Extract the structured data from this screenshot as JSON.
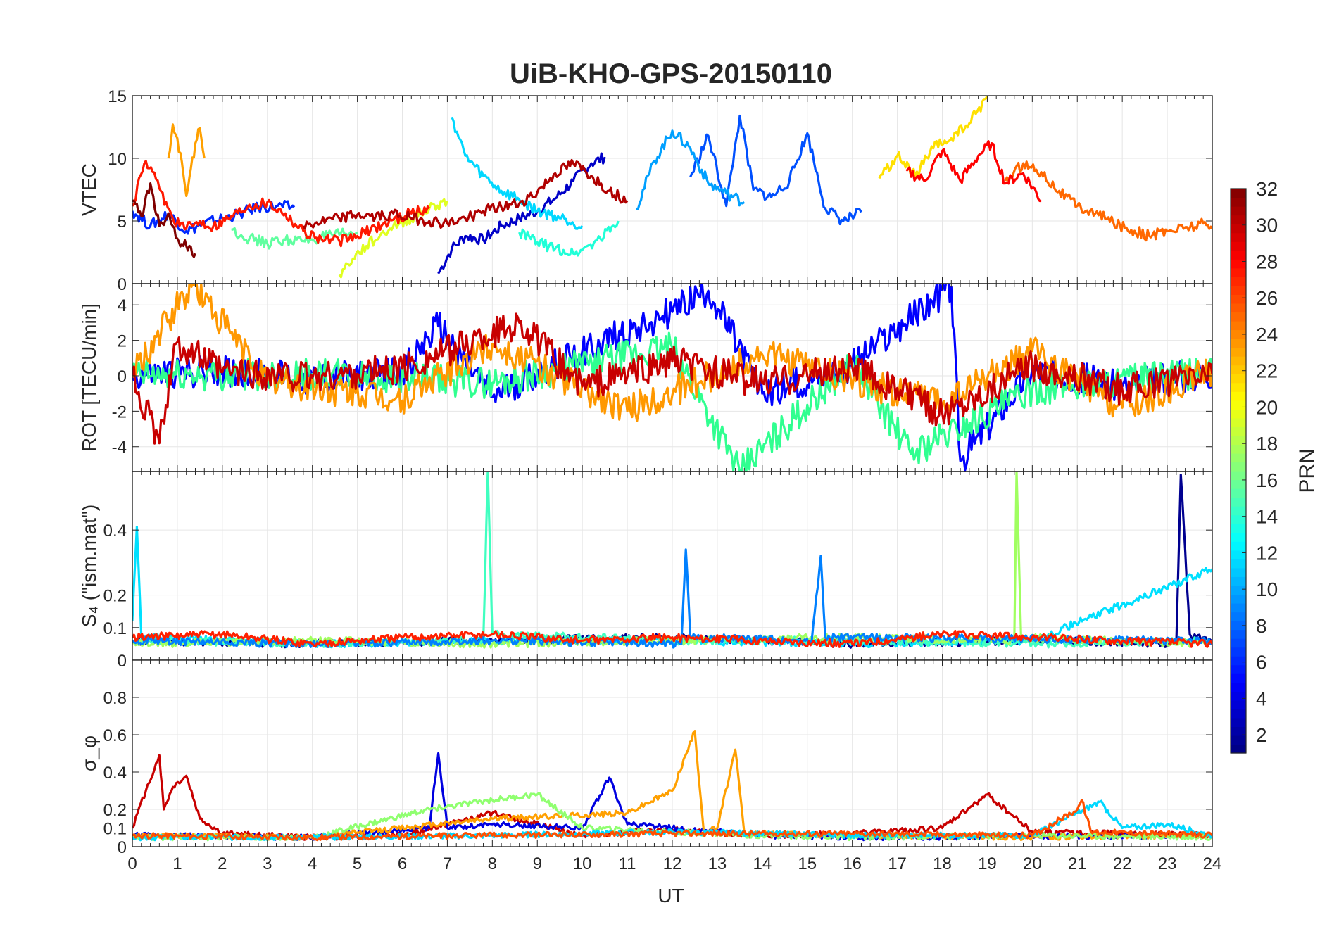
{
  "figure": {
    "title": "UiB-KHO-GPS-20150110",
    "xlabel": "UT"
  },
  "chart_data": [
    {
      "type": "line",
      "panel": "vtec",
      "ylabel": "VTEC",
      "xlim": [
        0,
        24
      ],
      "ylim": [
        0,
        15
      ],
      "xticks": [
        0,
        1,
        2,
        3,
        4,
        5,
        6,
        7,
        8,
        9,
        10,
        11,
        12,
        13,
        14,
        15,
        16,
        17,
        18,
        19,
        20,
        21,
        22,
        23,
        24
      ],
      "yticks": [
        0,
        5,
        10,
        15
      ],
      "grid": true,
      "series": [
        {
          "prn": 2,
          "color": "#0000c8",
          "x": [
            6.8,
            7.1,
            7.4,
            7.8,
            8.2,
            8.6,
            9.0,
            9.4,
            9.8,
            10.2,
            10.5
          ],
          "y": [
            0.8,
            2.8,
            3.8,
            3.5,
            4.6,
            5.2,
            5.8,
            6.8,
            8.2,
            9.6,
            10.1
          ]
        },
        {
          "prn": 4,
          "color": "#0028ff",
          "x": [
            0,
            0.4,
            0.8,
            1.2,
            1.6,
            2.0,
            2.4,
            2.8,
            3.2,
            3.6
          ],
          "y": [
            5.8,
            4.6,
            5.6,
            4.2,
            4.8,
            5.2,
            5.6,
            6.1,
            6.2,
            6.1
          ]
        },
        {
          "prn": 5,
          "color": "#0050ff",
          "x": [
            12.4,
            12.8,
            13.2,
            13.5,
            13.8,
            14.2,
            14.6,
            15.0,
            15.4,
            15.8,
            16.2
          ],
          "y": [
            8.5,
            11.8,
            6.2,
            13.4,
            7.5,
            6.9,
            8.2,
            12.0,
            6.0,
            5.0,
            5.7
          ]
        },
        {
          "prn": 9,
          "color": "#00a0ff",
          "x": [
            11.2,
            11.6,
            12.0,
            12.4,
            12.8,
            13.2,
            13.6
          ],
          "y": [
            6.0,
            9.8,
            12.2,
            10.8,
            8.0,
            7.2,
            6.5
          ]
        },
        {
          "prn": 11,
          "color": "#00d8ff",
          "x": [
            7.1,
            7.4,
            7.8,
            8.2,
            8.6,
            9.0,
            9.6,
            10.0
          ],
          "y": [
            13.3,
            10.2,
            8.6,
            7.4,
            6.7,
            5.8,
            5.2,
            4.6
          ]
        },
        {
          "prn": 13,
          "color": "#20ffd8",
          "x": [
            8.6,
            9.0,
            9.4,
            9.8,
            10.0,
            10.4,
            10.8
          ],
          "y": [
            4.1,
            3.3,
            2.8,
            2.4,
            2.7,
            3.6,
            5.0
          ]
        },
        {
          "prn": 15,
          "color": "#60ffa0",
          "x": [
            2.2,
            2.6,
            3.0,
            3.4,
            3.8,
            4.2,
            4.6,
            5.0
          ],
          "y": [
            4.3,
            3.6,
            3.2,
            3.5,
            3.4,
            3.7,
            3.9,
            4.1
          ]
        },
        {
          "prn": 19,
          "color": "#e0ff20",
          "x": [
            4.6,
            4.9,
            5.2,
            5.5,
            5.8,
            6.2,
            6.6,
            7.0
          ],
          "y": [
            0.7,
            2.0,
            3.0,
            3.8,
            4.6,
            5.2,
            6.0,
            6.6
          ]
        },
        {
          "prn": 20,
          "color": "#ffe000",
          "x": [
            16.6,
            17.0,
            17.4,
            17.8,
            18.2,
            18.6,
            19.0
          ],
          "y": [
            8.4,
            10.2,
            8.6,
            10.8,
            11.6,
            12.8,
            15.0
          ]
        },
        {
          "prn": 22,
          "color": "#ffa000",
          "x": [
            0.8,
            0.9,
            1.0,
            1.2,
            1.4,
            1.5,
            1.6
          ],
          "y": [
            10.0,
            12.7,
            11.6,
            7.0,
            11.2,
            12.4,
            10.0
          ]
        },
        {
          "prn": 24,
          "color": "#ff6800",
          "x": [
            19.4,
            19.8,
            20.2,
            20.6,
            21.0,
            21.4,
            21.8,
            22.2,
            22.6,
            23.0,
            23.4,
            23.8,
            24.0
          ],
          "y": [
            8.2,
            9.6,
            8.9,
            7.4,
            6.2,
            5.6,
            4.9,
            4.3,
            3.8,
            4.2,
            4.5,
            4.8,
            4.4
          ]
        },
        {
          "prn": 27,
          "color": "#ff1800",
          "x": [
            0,
            0.3,
            0.6,
            0.9,
            1.2,
            1.5,
            1.8,
            2.2,
            2.6,
            3.0,
            3.4,
            3.8,
            4.2,
            4.6,
            5.0,
            5.4,
            5.8,
            6.2,
            6.6
          ],
          "y": [
            6.2,
            9.8,
            7.6,
            5.2,
            4.4,
            5.0,
            4.6,
            5.4,
            6.3,
            6.5,
            5.6,
            4.2,
            3.6,
            3.4,
            3.8,
            4.5,
            5.1,
            5.6,
            6.0
          ]
        },
        {
          "prn": 28,
          "color": "#ff0000",
          "x": [
            17.2,
            17.6,
            18.0,
            18.4,
            18.8,
            19.1,
            19.4,
            19.8,
            20.2
          ],
          "y": [
            9.0,
            8.2,
            10.6,
            8.2,
            10.2,
            11.2,
            8.0,
            8.8,
            6.6
          ]
        },
        {
          "prn": 31,
          "color": "#b00000",
          "x": [
            3.8,
            4.2,
            4.6,
            5.0,
            5.4,
            5.8,
            6.2,
            6.6,
            7.0,
            7.4,
            7.8,
            8.2,
            8.6,
            9.0,
            9.4,
            9.8,
            10.2,
            10.6,
            11.0
          ],
          "y": [
            4.6,
            4.9,
            5.2,
            5.5,
            5.3,
            5.6,
            5.2,
            5.0,
            4.8,
            5.2,
            5.8,
            6.1,
            6.4,
            7.3,
            8.8,
            9.6,
            8.6,
            7.4,
            6.6
          ]
        },
        {
          "prn": 32,
          "color": "#800000",
          "x": [
            0,
            0.2,
            0.4,
            0.6,
            0.8,
            1.0,
            1.2,
            1.4
          ],
          "y": [
            6.6,
            5.4,
            8.0,
            4.6,
            5.6,
            3.6,
            3.0,
            2.4
          ]
        }
      ]
    },
    {
      "type": "line",
      "panel": "rot",
      "ylabel": "ROT [TECU/min]",
      "xlim": [
        0,
        24
      ],
      "ylim": [
        -5.4,
        5.2
      ],
      "yticks": [
        -4,
        -2,
        0,
        2,
        4
      ],
      "grid": true,
      "series": [
        {
          "prn": 3,
          "color": "#0000ff",
          "x": [
            0,
            2,
            4,
            6,
            6.8,
            8,
            10,
            12,
            12.8,
            14,
            16,
            18.2,
            18.4,
            20,
            22,
            24
          ],
          "y": [
            0,
            0.3,
            -0.2,
            0.2,
            2.8,
            -1.2,
            1.4,
            3.6,
            4.8,
            -1.0,
            0.6,
            5.0,
            -4.8,
            0.4,
            -0.6,
            0.2
          ]
        },
        {
          "prn": 13,
          "color": "#30ff90",
          "x": [
            0,
            4,
            8,
            12,
            13.5,
            16,
            17.3,
            20,
            24
          ],
          "y": [
            0,
            0.1,
            -0.4,
            1.6,
            -5.4,
            0.8,
            -4.4,
            -0.8,
            0.2
          ]
        },
        {
          "prn": 22,
          "color": "#ff9800",
          "x": [
            0,
            1.35,
            3,
            6,
            8,
            11,
            14,
            18,
            20,
            22,
            24
          ],
          "y": [
            0,
            5.2,
            -0.3,
            -1.4,
            1.8,
            -2.0,
            1.2,
            -1.6,
            1.4,
            -1.8,
            0.3
          ]
        },
        {
          "prn": 30,
          "color": "#c80000",
          "x": [
            0,
            0.6,
            1.0,
            2,
            4,
            6,
            8.6,
            10,
            12,
            14,
            16,
            18,
            20,
            22,
            24
          ],
          "y": [
            0,
            -3.8,
            1.9,
            0.2,
            -0.1,
            0.4,
            3.0,
            -0.6,
            0.8,
            -0.4,
            0.5,
            -2.1,
            0.6,
            -0.8,
            0.1
          ]
        }
      ]
    },
    {
      "type": "line",
      "panel": "s4",
      "ylabel": "S₄ (\"ism.mat\")",
      "xlim": [
        0,
        24
      ],
      "ylim": [
        0,
        0.58
      ],
      "yticks": [
        0,
        0.1,
        0.2,
        0.4
      ],
      "grid": true,
      "series": [
        {
          "prn": 1,
          "color": "#000090",
          "x": [
            0,
            4,
            8,
            12,
            16,
            20,
            23.2,
            23.3,
            23.5,
            24
          ],
          "y": [
            0.06,
            0.05,
            0.06,
            0.07,
            0.05,
            0.06,
            0.05,
            0.57,
            0.08,
            0.06
          ]
        },
        {
          "prn": 12,
          "color": "#00e0ff",
          "x": [
            0,
            0.1,
            0.2,
            4,
            8,
            12,
            16,
            20,
            24
          ],
          "y": [
            0.12,
            0.41,
            0.07,
            0.05,
            0.06,
            0.06,
            0.05,
            0.06,
            0.28
          ]
        },
        {
          "prn": 15,
          "color": "#40ffc0",
          "x": [
            0,
            4,
            7.8,
            7.9,
            8.0,
            12,
            16,
            20,
            24
          ],
          "y": [
            0.06,
            0.05,
            0.06,
            0.58,
            0.08,
            0.06,
            0.06,
            0.05,
            0.06
          ]
        },
        {
          "prn": 17,
          "color": "#a0ff60",
          "x": [
            0,
            4,
            8,
            12,
            16,
            19.6,
            19.65,
            19.75,
            24
          ],
          "y": [
            0.05,
            0.06,
            0.05,
            0.06,
            0.07,
            0.06,
            0.58,
            0.07,
            0.05
          ]
        },
        {
          "prn": 9,
          "color": "#0080ff",
          "x": [
            0,
            4,
            8,
            12.2,
            12.3,
            12.4,
            15.1,
            15.3,
            15.4,
            24
          ],
          "y": [
            0.06,
            0.05,
            0.06,
            0.05,
            0.34,
            0.07,
            0.06,
            0.32,
            0.07,
            0.06
          ]
        },
        {
          "prn": 28,
          "color": "#ff2000",
          "x": [
            0,
            2,
            4,
            6,
            8,
            10,
            12,
            14,
            16,
            18,
            20,
            22,
            24
          ],
          "y": [
            0.07,
            0.08,
            0.05,
            0.07,
            0.08,
            0.06,
            0.07,
            0.06,
            0.05,
            0.08,
            0.07,
            0.06,
            0.05
          ]
        }
      ]
    },
    {
      "type": "line",
      "panel": "sigma_phi",
      "ylabel": "σ_φ",
      "xlim": [
        0,
        24
      ],
      "ylim": [
        0,
        1.0
      ],
      "yticks": [
        0,
        0.1,
        0.2,
        0.4,
        0.6,
        0.8
      ],
      "grid": true,
      "series": [
        {
          "prn": 30,
          "color": "#c80000",
          "x": [
            0,
            0.3,
            0.6,
            0.7,
            0.9,
            1.2,
            1.5,
            2,
            4,
            6,
            8,
            10,
            12,
            14,
            16,
            18,
            19,
            20,
            22,
            24
          ],
          "y": [
            0.1,
            0.3,
            0.49,
            0.2,
            0.32,
            0.38,
            0.15,
            0.07,
            0.05,
            0.06,
            0.18,
            0.06,
            0.09,
            0.06,
            0.07,
            0.1,
            0.28,
            0.08,
            0.07,
            0.06
          ]
        },
        {
          "prn": 3,
          "color": "#0000e0",
          "x": [
            0,
            4,
            6.6,
            6.8,
            7.0,
            8,
            10,
            10.6,
            11,
            12,
            14,
            16,
            24
          ],
          "y": [
            0.06,
            0.05,
            0.1,
            0.5,
            0.1,
            0.12,
            0.1,
            0.37,
            0.12,
            0.1,
            0.06,
            0.05,
            0.06
          ]
        },
        {
          "prn": 22,
          "color": "#ffa000",
          "x": [
            0,
            4,
            8,
            11,
            12,
            12.5,
            12.7,
            13,
            13.4,
            13.6,
            16,
            20,
            24
          ],
          "y": [
            0.06,
            0.05,
            0.15,
            0.18,
            0.3,
            0.62,
            0.08,
            0.1,
            0.52,
            0.07,
            0.06,
            0.05,
            0.06
          ]
        },
        {
          "prn": 17,
          "color": "#90ff70",
          "x": [
            0,
            4,
            6.6,
            8,
            9,
            10,
            12,
            14,
            16,
            20,
            24
          ],
          "y": [
            0.05,
            0.05,
            0.2,
            0.25,
            0.28,
            0.1,
            0.08,
            0.06,
            0.05,
            0.06,
            0.05
          ]
        },
        {
          "prn": 12,
          "color": "#00d8ff",
          "x": [
            0,
            4,
            8,
            12,
            16,
            20,
            21.5,
            22,
            23,
            24
          ],
          "y": [
            0.05,
            0.05,
            0.06,
            0.08,
            0.06,
            0.06,
            0.24,
            0.1,
            0.12,
            0.06
          ]
        },
        {
          "prn": 25,
          "color": "#ff5000",
          "x": [
            0,
            4,
            8,
            12,
            16,
            20,
            21,
            21.1,
            21.3,
            24
          ],
          "y": [
            0.06,
            0.05,
            0.06,
            0.07,
            0.07,
            0.06,
            0.2,
            0.25,
            0.08,
            0.06
          ]
        }
      ]
    }
  ],
  "colorbar": {
    "label": "PRN",
    "ticks": [
      2,
      4,
      6,
      8,
      10,
      12,
      14,
      16,
      18,
      20,
      22,
      24,
      26,
      28,
      30,
      32
    ],
    "range": [
      1,
      32
    ],
    "colormap": "jet"
  }
}
